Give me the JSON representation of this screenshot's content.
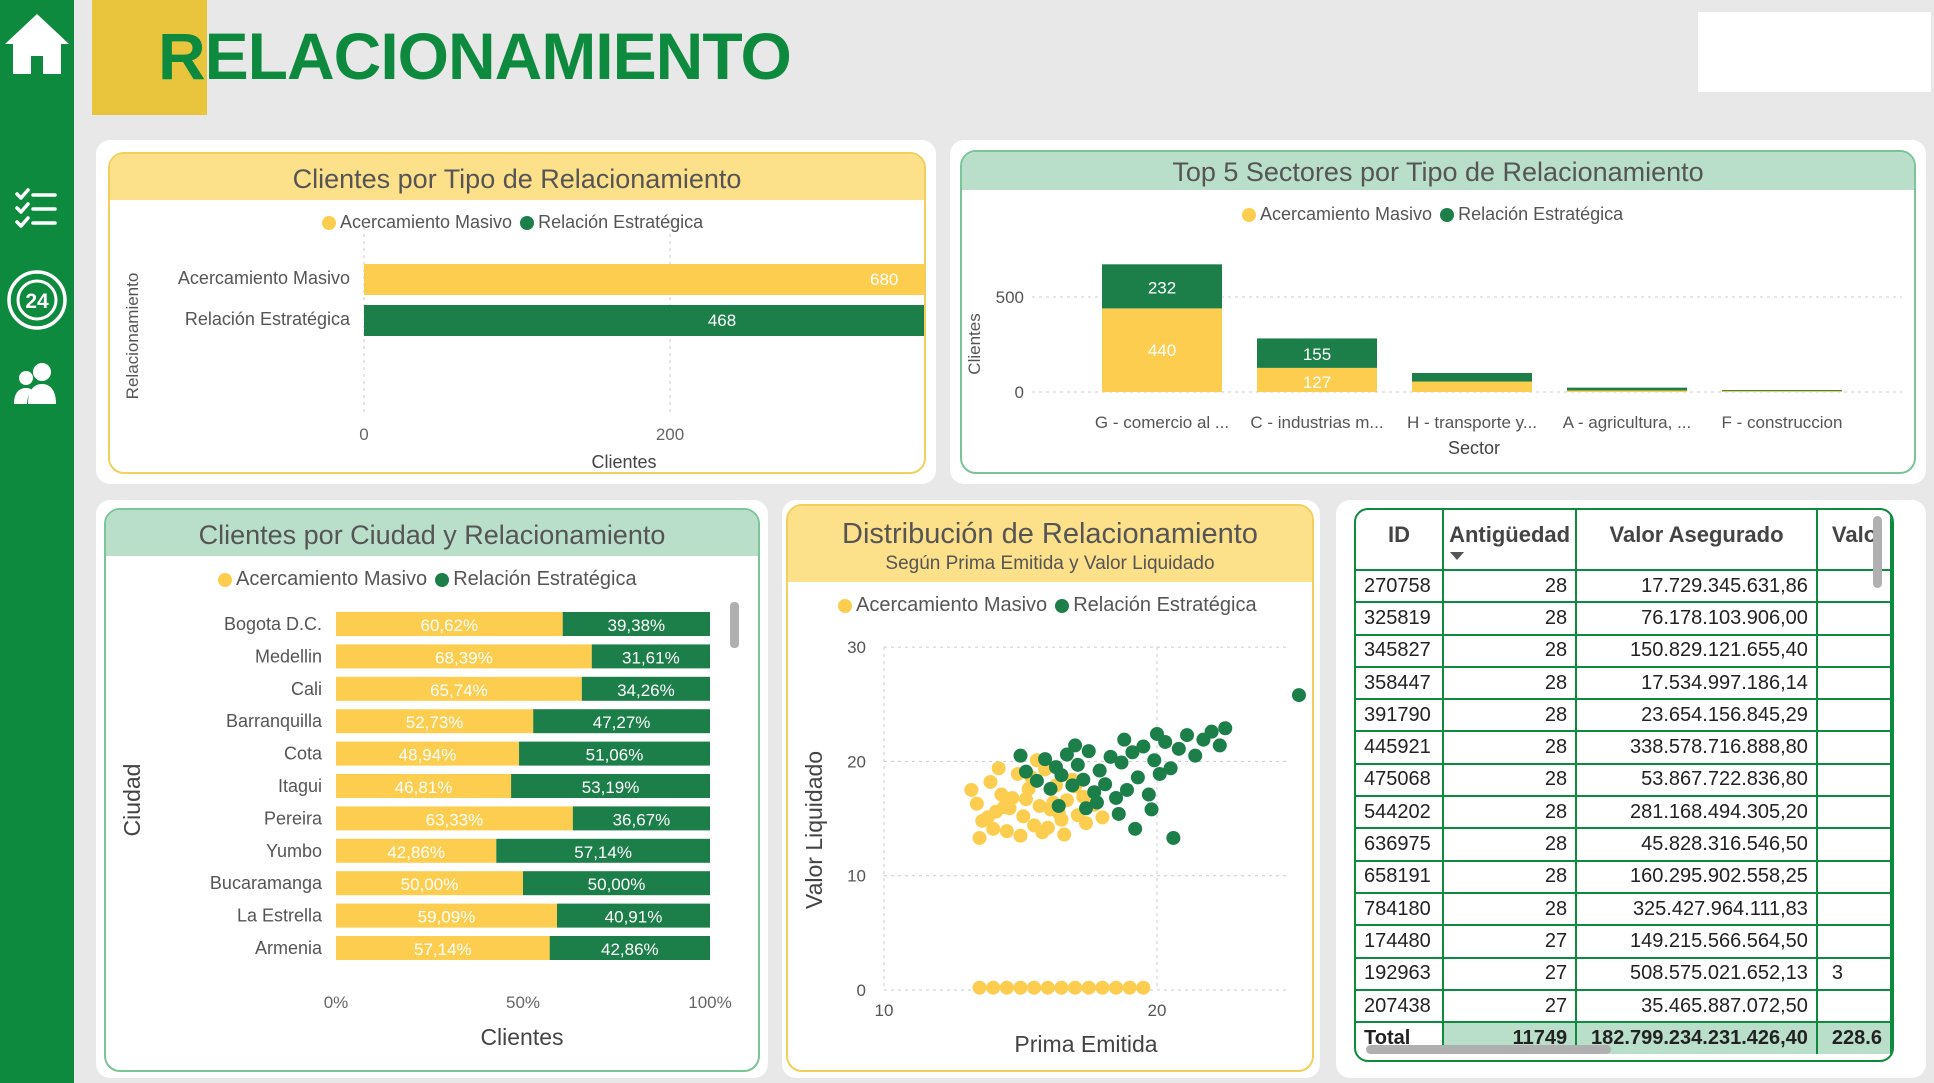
{
  "header": {
    "title": "RELACIONAMIENTO"
  },
  "sidebar": {
    "items": [
      "home-icon",
      "checklist-icon",
      "24h-icon",
      "users-icon"
    ]
  },
  "colors": {
    "accent_green": "#0e8a3e",
    "series_yellow": "#fccd4e",
    "series_green": "#1c7f4a",
    "head_yellow": "#fde08a",
    "head_green": "#b9dfca"
  },
  "legend": {
    "masivo": "Acercamiento Masivo",
    "estrategica": "Relación Estratégica"
  },
  "chart_data": [
    {
      "id": "clientes_tipo",
      "type": "bar",
      "orientation": "horizontal",
      "title": "Clientes por Tipo de Relacionamiento",
      "xlabel": "Clientes",
      "ylabel": "Relacionamiento",
      "categories": [
        "Acercamiento Masivo",
        "Relación Estratégica"
      ],
      "values": [
        680,
        468
      ],
      "data_labels": [
        "680",
        "468"
      ],
      "xticks": [
        "0",
        "200",
        "400",
        "600"
      ],
      "xlim": [
        0,
        700
      ],
      "legend": [
        "Acercamiento Masivo",
        "Relación Estratégica"
      ]
    },
    {
      "id": "top5_sectores",
      "type": "bar",
      "stacked": true,
      "title": "Top 5 Sectores por Tipo de Relacionamiento",
      "xlabel": "Sector",
      "ylabel": "Clientes",
      "categories": [
        "G - comercio al ...",
        "C - industrias m...",
        "H - transporte y...",
        "A - agricultura, ...",
        "F - construccion"
      ],
      "series": [
        {
          "name": "Acercamiento Masivo",
          "values": [
            440,
            127,
            55,
            8,
            5
          ]
        },
        {
          "name": "Relación Estratégica",
          "values": [
            232,
            155,
            45,
            15,
            5
          ]
        }
      ],
      "data_labels": {
        "Acercamiento Masivo": [
          "440",
          "127",
          "",
          "",
          ""
        ],
        "Relación Estratégica": [
          "232",
          "155",
          "",
          "",
          ""
        ]
      },
      "yticks": [
        "0",
        "500"
      ],
      "ylim": [
        0,
        750
      ],
      "legend": [
        "Acercamiento Masivo",
        "Relación Estratégica"
      ]
    },
    {
      "id": "ciudad",
      "type": "bar",
      "orientation": "horizontal",
      "stacked": "100%",
      "title": "Clientes por Ciudad y Relacionamiento",
      "xlabel": "Clientes",
      "ylabel": "Ciudad",
      "categories": [
        "Bogota D.C.",
        "Medellin",
        "Cali",
        "Barranquilla",
        "Cota",
        "Itagui",
        "Pereira",
        "Yumbo",
        "Bucaramanga",
        "La Estrella",
        "Armenia"
      ],
      "series": [
        {
          "name": "Acercamiento Masivo",
          "values": [
            60.62,
            68.39,
            65.74,
            52.73,
            48.94,
            46.81,
            63.33,
            42.86,
            50.0,
            59.09,
            57.14
          ]
        },
        {
          "name": "Relación Estratégica",
          "values": [
            39.38,
            31.61,
            34.26,
            47.27,
            51.06,
            53.19,
            36.67,
            57.14,
            50.0,
            40.91,
            42.86
          ]
        }
      ],
      "labels_masivo": [
        "60,62%",
        "68,39%",
        "65,74%",
        "52,73%",
        "48,94%",
        "46,81%",
        "63,33%",
        "42,86%",
        "50,00%",
        "59,09%",
        "57,14%"
      ],
      "labels_estrategica": [
        "39,38%",
        "31,61%",
        "34,26%",
        "47,27%",
        "51,06%",
        "53,19%",
        "36,67%",
        "57,14%",
        "50,00%",
        "40,91%",
        "42,86%"
      ],
      "xticks": [
        "0%",
        "50%",
        "100%"
      ],
      "legend": [
        "Acercamiento Masivo",
        "Relación Estratégica"
      ]
    },
    {
      "id": "distribucion",
      "type": "scatter",
      "title": "Distribución de Relacionamiento",
      "subtitle": "Según Prima Emitida y Valor Liquidado",
      "xlabel": "Prima Emitida",
      "ylabel": "Valor Liquidado",
      "xticks": [
        "10",
        "20"
      ],
      "yticks": [
        "0",
        "10",
        "20",
        "30"
      ],
      "xlim": [
        10,
        25
      ],
      "ylim": [
        0,
        30
      ],
      "legend": [
        "Acercamiento Masivo",
        "Relación Estratégica"
      ],
      "series": [
        {
          "name": "Acercamiento Masivo",
          "points": [
            [
              13.2,
              17.5
            ],
            [
              13.4,
              16.3
            ],
            [
              13.6,
              14.8
            ],
            [
              13.9,
              18.2
            ],
            [
              14.1,
              15.6
            ],
            [
              14.3,
              17.1
            ],
            [
              14.5,
              13.9
            ],
            [
              14.7,
              16.8
            ],
            [
              14.9,
              18.9
            ],
            [
              15.1,
              15.2
            ],
            [
              15.3,
              17.6
            ],
            [
              15.5,
              14.4
            ],
            [
              15.7,
              16.1
            ],
            [
              15.9,
              19.3
            ],
            [
              16.1,
              15.8
            ],
            [
              16.3,
              17.9
            ],
            [
              16.5,
              14.9
            ],
            [
              16.7,
              16.6
            ],
            [
              16.9,
              18.4
            ],
            [
              17.1,
              15.3
            ],
            [
              17.3,
              16.9
            ],
            [
              13.8,
              15.1
            ],
            [
              14.2,
              19.4
            ],
            [
              14.6,
              15.9
            ],
            [
              15.0,
              13.5
            ],
            [
              15.4,
              18.6
            ],
            [
              15.8,
              13.8
            ],
            [
              16.2,
              16.4
            ],
            [
              16.6,
              13.6
            ],
            [
              17.0,
              17.8
            ],
            [
              17.4,
              14.6
            ],
            [
              17.7,
              16.2
            ],
            [
              18.0,
              15.1
            ],
            [
              13.5,
              13.3
            ],
            [
              14.0,
              14.1
            ],
            [
              16.0,
              14.2
            ],
            [
              15.6,
              20.1
            ],
            [
              14.4,
              16.0
            ],
            [
              15.2,
              16.7
            ],
            [
              16.4,
              15.5
            ],
            [
              13.5,
              0.2
            ],
            [
              14.0,
              0.2
            ],
            [
              14.5,
              0.2
            ],
            [
              15.0,
              0.2
            ],
            [
              15.5,
              0.2
            ],
            [
              16.0,
              0.2
            ],
            [
              16.5,
              0.2
            ],
            [
              17.0,
              0.2
            ],
            [
              17.5,
              0.2
            ],
            [
              18.0,
              0.2
            ],
            [
              18.5,
              0.2
            ],
            [
              19.0,
              0.2
            ],
            [
              19.5,
              0.2
            ]
          ]
        },
        {
          "name": "Relación Estratégica",
          "points": [
            [
              15.2,
              19.1
            ],
            [
              15.6,
              18.3
            ],
            [
              15.9,
              20.2
            ],
            [
              16.1,
              17.6
            ],
            [
              16.3,
              19.5
            ],
            [
              16.5,
              18.8
            ],
            [
              16.7,
              20.6
            ],
            [
              16.9,
              17.9
            ],
            [
              17.1,
              19.7
            ],
            [
              17.3,
              18.4
            ],
            [
              17.5,
              20.9
            ],
            [
              17.7,
              17.3
            ],
            [
              17.9,
              19.2
            ],
            [
              18.1,
              18.0
            ],
            [
              18.3,
              20.4
            ],
            [
              18.5,
              16.8
            ],
            [
              18.7,
              19.9
            ],
            [
              18.9,
              17.5
            ],
            [
              19.1,
              20.8
            ],
            [
              19.3,
              18.6
            ],
            [
              19.5,
              21.3
            ],
            [
              19.7,
              17.1
            ],
            [
              19.9,
              20.1
            ],
            [
              20.1,
              18.9
            ],
            [
              20.3,
              21.7
            ],
            [
              20.5,
              19.4
            ],
            [
              20.8,
              21.1
            ],
            [
              21.1,
              22.3
            ],
            [
              21.4,
              20.5
            ],
            [
              21.7,
              21.9
            ],
            [
              22.0,
              22.6
            ],
            [
              22.3,
              21.4
            ],
            [
              22.5,
              22.9
            ],
            [
              17.4,
              15.9
            ],
            [
              18.6,
              15.4
            ],
            [
              19.2,
              14.1
            ],
            [
              20.6,
              13.3
            ],
            [
              16.4,
              16.1
            ],
            [
              17.8,
              16.4
            ],
            [
              19.8,
              15.8
            ],
            [
              25.2,
              25.8
            ],
            [
              15.0,
              20.5
            ],
            [
              17.0,
              21.4
            ],
            [
              18.8,
              21.9
            ],
            [
              20.0,
              22.4
            ]
          ]
        }
      ]
    }
  ],
  "table": {
    "columns": [
      "ID",
      "Antigüedad",
      "Valor Asegurado",
      "Valo"
    ],
    "rows": [
      [
        "270758",
        "28",
        "17.729.345.631,86",
        ""
      ],
      [
        "325819",
        "28",
        "76.178.103.906,00",
        ""
      ],
      [
        "345827",
        "28",
        "150.829.121.655,40",
        ""
      ],
      [
        "358447",
        "28",
        "17.534.997.186,14",
        ""
      ],
      [
        "391790",
        "28",
        "23.654.156.845,29",
        ""
      ],
      [
        "445921",
        "28",
        "338.578.716.888,80",
        ""
      ],
      [
        "475068",
        "28",
        "53.867.722.836,80",
        ""
      ],
      [
        "544202",
        "28",
        "281.168.494.305,20",
        ""
      ],
      [
        "636975",
        "28",
        "45.828.316.546,50",
        ""
      ],
      [
        "658191",
        "28",
        "160.295.902.558,25",
        ""
      ],
      [
        "784180",
        "28",
        "325.427.964.111,83",
        ""
      ],
      [
        "174480",
        "27",
        "149.215.566.564,50",
        ""
      ],
      [
        "192963",
        "27",
        "508.575.021.652,13",
        "3"
      ],
      [
        "207438",
        "27",
        "35.465.887.072,50",
        ""
      ]
    ],
    "total": [
      "Total",
      "11749",
      "182.799.234.231.426,40",
      "228.6"
    ]
  }
}
